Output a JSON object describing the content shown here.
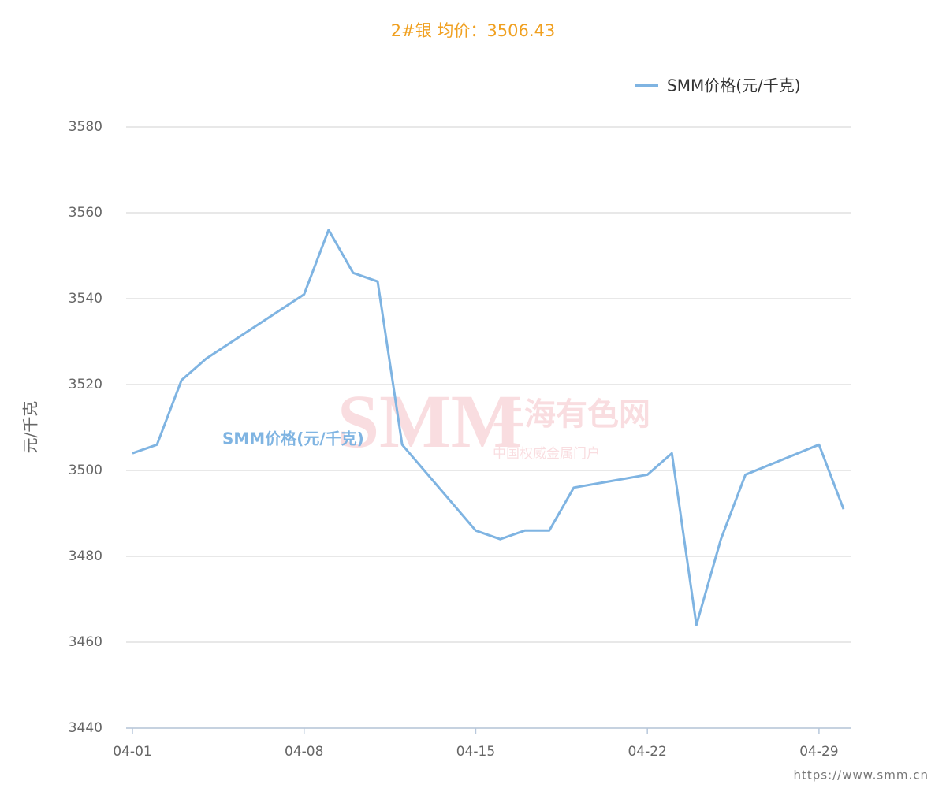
{
  "chart_data": {
    "type": "line",
    "title": "2#银 均价：3506.43",
    "y_label": "元/千克",
    "x": [
      "04-01",
      "04-02",
      "04-03",
      "04-04",
      "04-08",
      "04-09",
      "04-10",
      "04-11",
      "04-12",
      "04-15",
      "04-16",
      "04-17",
      "04-18",
      "04-19",
      "04-22",
      "04-23",
      "04-24",
      "04-25",
      "04-26",
      "04-29",
      "04-30"
    ],
    "series": [
      {
        "name": "SMM价格(元/千克)",
        "color": "#7fb4e2",
        "values": [
          3504,
          3506,
          3521,
          3526,
          3541,
          3556,
          3546,
          3544,
          3506,
          3486,
          3484,
          3486,
          3486,
          3496,
          3499,
          3504,
          3464,
          3484,
          3499,
          3506,
          3491
        ]
      }
    ],
    "xlim": [
      "04-01",
      "04-30"
    ],
    "xticks": [
      "04-01",
      "04-08",
      "04-15",
      "04-22",
      "04-29"
    ],
    "ylim": [
      3440,
      3580
    ],
    "yticks": [
      3440,
      3460,
      3480,
      3500,
      3520,
      3540,
      3560,
      3580
    ],
    "grid": true,
    "legend": "top-right",
    "watermark": [
      "SMM",
      "上海有色网",
      "中国权威金属门户"
    ],
    "source": "https://www.smm.cn"
  }
}
